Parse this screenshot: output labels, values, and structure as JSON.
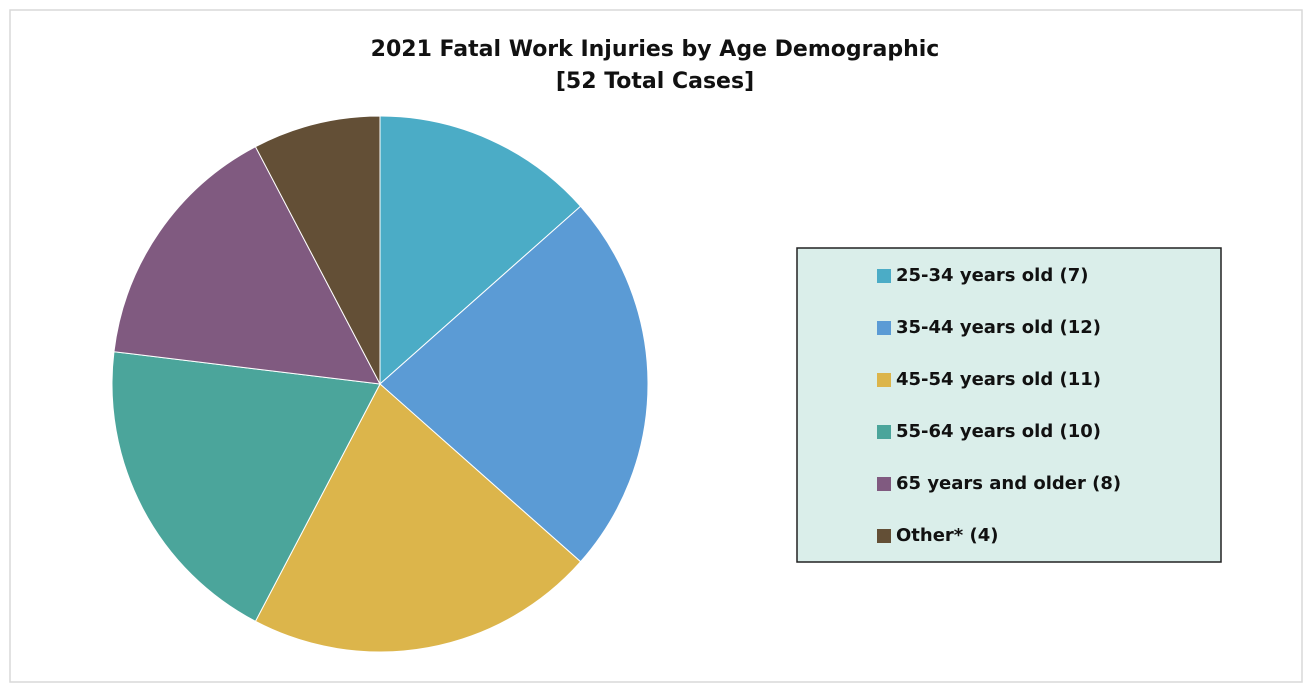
{
  "chart_data": {
    "type": "pie",
    "title": "2021 Fatal Work Injuries by Age Demographic",
    "subtitle": "[52 Total Cases]",
    "categories": [
      "25-34 years old (7)",
      "35-44 years old (12)",
      "45-54 years old (11)",
      "55-64 years old (10)",
      "65 years and older (8)",
      "Other* (4)"
    ],
    "values": [
      7,
      12,
      11,
      10,
      8,
      4
    ],
    "colors": [
      "#4bacc6",
      "#5b9bd5",
      "#dcb54b",
      "#4ba59b",
      "#805a80",
      "#634f36"
    ],
    "legend": "right"
  }
}
